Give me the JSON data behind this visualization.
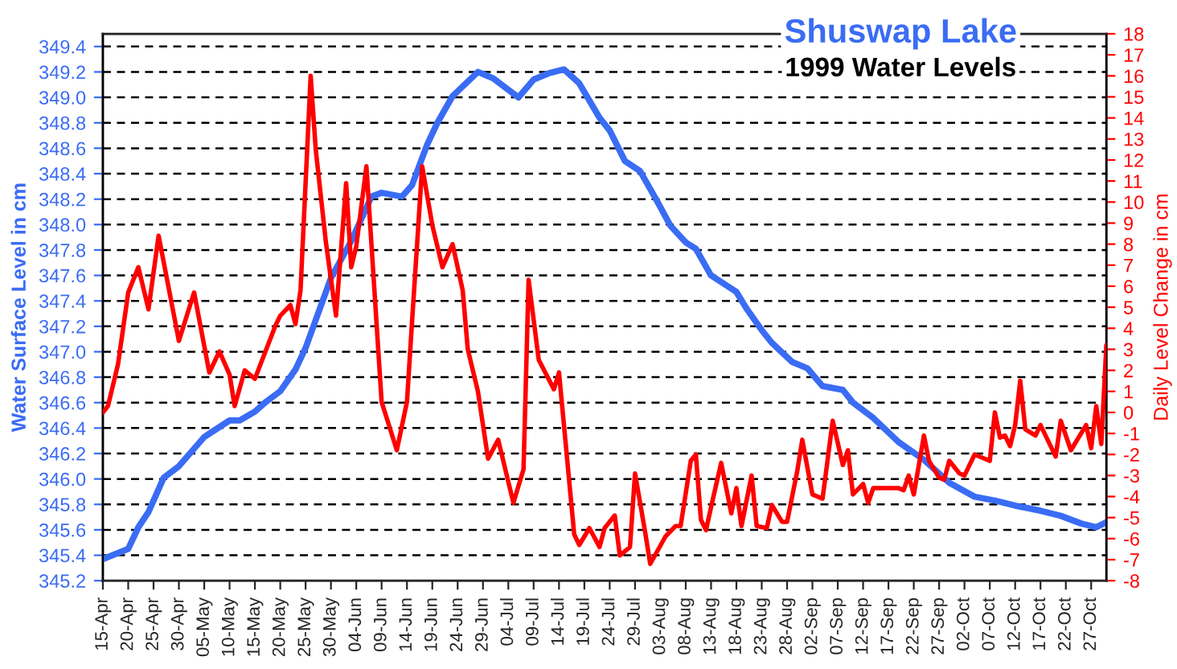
{
  "chart_data": {
    "type": "line",
    "title": "Shuswap Lake",
    "subtitle": "1999 Water Levels",
    "ylabel": "Water Surface Level in cm",
    "y2label": "Daily Level Change in cm",
    "series": [
      {
        "color": "#3a6cf4",
        "x": [
          "1999-04-15",
          "1999-04-20",
          "1999-04-22",
          "1999-04-24",
          "1999-04-27",
          "1999-04-30",
          "1999-05-05",
          "1999-05-10",
          "1999-05-12",
          "1999-05-15",
          "1999-05-17",
          "1999-05-20",
          "1999-05-23",
          "1999-05-25",
          "1999-05-30",
          "1999-06-03",
          "1999-06-07",
          "1999-06-09",
          "1999-06-13",
          "1999-06-15",
          "1999-06-18",
          "1999-06-20",
          "1999-06-23",
          "1999-06-28",
          "1999-07-01",
          "1999-07-06",
          "1999-07-09",
          "1999-07-12",
          "1999-07-15",
          "1999-07-18",
          "1999-07-22",
          "1999-07-24",
          "1999-07-27",
          "1999-07-30",
          "1999-08-02",
          "1999-08-05",
          "1999-08-08",
          "1999-08-10",
          "1999-08-13",
          "1999-08-18",
          "1999-08-20",
          "1999-08-23",
          "1999-08-25",
          "1999-08-29",
          "1999-09-01",
          "1999-09-04",
          "1999-09-08",
          "1999-09-10",
          "1999-09-14",
          "1999-09-19",
          "1999-09-24",
          "1999-09-29",
          "1999-10-04",
          "1999-10-08",
          "1999-10-12",
          "1999-10-17",
          "1999-10-21",
          "1999-10-25",
          "1999-10-28",
          "1999-10-30"
        ],
        "values": [
          345.37,
          345.45,
          345.62,
          345.74,
          346.01,
          346.1,
          346.33,
          346.46,
          346.46,
          346.53,
          346.6,
          346.69,
          346.86,
          347.03,
          347.58,
          347.87,
          348.22,
          348.25,
          348.22,
          348.31,
          348.63,
          348.8,
          349.01,
          349.2,
          349.15,
          349.0,
          349.14,
          349.19,
          349.22,
          349.11,
          348.84,
          348.74,
          348.5,
          348.42,
          348.21,
          347.99,
          347.86,
          347.81,
          347.6,
          347.47,
          347.34,
          347.17,
          347.07,
          346.92,
          346.87,
          346.73,
          346.7,
          346.6,
          346.48,
          346.29,
          346.15,
          345.97,
          345.86,
          345.83,
          345.79,
          345.75,
          345.71,
          345.65,
          345.62,
          345.66
        ]
      },
      {
        "color": "#ff0000",
        "axis": "y2",
        "x": [
          "1999-04-15",
          "1999-04-16",
          "1999-04-18",
          "1999-04-19",
          "1999-04-20",
          "1999-04-22",
          "1999-04-24",
          "1999-04-26",
          "1999-04-30",
          "1999-05-03",
          "1999-05-06",
          "1999-05-08",
          "1999-05-10",
          "1999-05-11",
          "1999-05-13",
          "1999-05-15",
          "1999-05-19",
          "1999-05-20",
          "1999-05-22",
          "1999-05-23",
          "1999-05-24",
          "1999-05-26",
          "1999-05-27",
          "1999-05-29",
          "1999-05-31",
          "1999-06-02",
          "1999-06-03",
          "1999-06-04",
          "1999-06-06",
          "1999-06-09",
          "1999-06-12",
          "1999-06-14",
          "1999-06-15",
          "1999-06-17",
          "1999-06-19",
          "1999-06-21",
          "1999-06-23",
          "1999-06-25",
          "1999-06-26",
          "1999-06-28",
          "1999-06-30",
          "1999-07-02",
          "1999-07-05",
          "1999-07-07",
          "1999-07-08",
          "1999-07-10",
          "1999-07-13",
          "1999-07-14",
          "1999-07-17",
          "1999-07-18",
          "1999-07-20",
          "1999-07-22",
          "1999-07-23",
          "1999-07-25",
          "1999-07-26",
          "1999-07-28",
          "1999-07-29",
          "1999-07-31",
          "1999-08-01",
          "1999-08-04",
          "1999-08-06",
          "1999-08-07",
          "1999-08-09",
          "1999-08-10",
          "1999-08-11",
          "1999-08-12",
          "1999-08-13",
          "1999-08-15",
          "1999-08-17",
          "1999-08-18",
          "1999-08-19",
          "1999-08-21",
          "1999-08-22",
          "1999-08-24",
          "1999-08-25",
          "1999-08-27",
          "1999-08-28",
          "1999-08-30",
          "1999-08-31",
          "1999-09-02",
          "1999-09-04",
          "1999-09-06",
          "1999-09-08",
          "1999-09-09",
          "1999-09-10",
          "1999-09-12",
          "1999-09-13",
          "1999-09-14",
          "1999-09-17",
          "1999-09-19",
          "1999-09-20",
          "1999-09-21",
          "1999-09-22",
          "1999-09-24",
          "1999-09-25",
          "1999-09-27",
          "1999-09-28",
          "1999-09-29",
          "1999-10-01",
          "1999-10-02",
          "1999-10-04",
          "1999-10-06",
          "1999-10-07",
          "1999-10-08",
          "1999-10-09",
          "1999-10-10",
          "1999-10-11",
          "1999-10-12",
          "1999-10-13",
          "1999-10-14",
          "1999-10-16",
          "1999-10-17",
          "1999-10-20",
          "1999-10-21",
          "1999-10-23",
          "1999-10-26",
          "1999-10-27",
          "1999-10-28",
          "1999-10-29",
          "1999-10-30"
        ],
        "values": [
          0.0,
          0.3,
          2.3,
          4.0,
          5.7,
          6.9,
          4.9,
          8.4,
          3.4,
          5.7,
          1.9,
          2.9,
          1.8,
          0.3,
          2.0,
          1.6,
          4.1,
          4.6,
          5.1,
          4.2,
          5.8,
          16.0,
          12.5,
          8.1,
          4.6,
          10.9,
          6.9,
          7.9,
          11.7,
          0.5,
          -1.8,
          0.5,
          4.3,
          11.7,
          8.9,
          6.9,
          8.0,
          5.8,
          3.0,
          1.0,
          -2.2,
          -1.3,
          -4.3,
          -2.7,
          6.3,
          2.5,
          1.1,
          1.9,
          -5.8,
          -6.3,
          -5.5,
          -6.4,
          -5.5,
          -4.9,
          -6.8,
          -6.4,
          -2.9,
          -5.7,
          -7.2,
          -5.9,
          -5.4,
          -5.4,
          -2.3,
          -2.0,
          -5.1,
          -5.6,
          -4.5,
          -2.4,
          -4.8,
          -3.6,
          -5.4,
          -3.0,
          -5.4,
          -5.5,
          -4.4,
          -5.2,
          -5.2,
          -2.8,
          -1.3,
          -3.9,
          -4.1,
          -0.4,
          -2.5,
          -1.8,
          -3.9,
          -3.4,
          -4.3,
          -3.6,
          -3.6,
          -3.6,
          -3.7,
          -3.0,
          -3.9,
          -1.1,
          -2.3,
          -3.1,
          -3.2,
          -2.3,
          -2.9,
          -3.0,
          -2.0,
          -2.2,
          -2.3,
          0.0,
          -1.2,
          -1.1,
          -1.6,
          -0.6,
          1.5,
          -0.8,
          -1.1,
          -0.6,
          -2.1,
          -0.4,
          -1.8,
          -0.6,
          -1.7,
          0.3,
          -1.5,
          3.2
        ]
      }
    ],
    "xlim": [
      "1999-04-15",
      "1999-10-30"
    ],
    "xticks": [
      {
        "value": "1999-04-15",
        "label": "15-Apr"
      },
      {
        "value": "1999-04-20",
        "label": "20-Apr"
      },
      {
        "value": "1999-04-25",
        "label": "25-Apr"
      },
      {
        "value": "1999-04-30",
        "label": "30-Apr"
      },
      {
        "value": "1999-05-05",
        "label": "05-May"
      },
      {
        "value": "1999-05-10",
        "label": "10-May"
      },
      {
        "value": "1999-05-15",
        "label": "15-May"
      },
      {
        "value": "1999-05-20",
        "label": "20-May"
      },
      {
        "value": "1999-05-25",
        "label": "25-May"
      },
      {
        "value": "1999-05-30",
        "label": "30-May"
      },
      {
        "value": "1999-06-04",
        "label": "04-Jun"
      },
      {
        "value": "1999-06-09",
        "label": "09-Jun"
      },
      {
        "value": "1999-06-14",
        "label": "14-Jun"
      },
      {
        "value": "1999-06-19",
        "label": "19-Jun"
      },
      {
        "value": "1999-06-24",
        "label": "24-Jun"
      },
      {
        "value": "1999-06-29",
        "label": "29-Jun"
      },
      {
        "value": "1999-07-04",
        "label": "04-Jul"
      },
      {
        "value": "1999-07-09",
        "label": "09-Jul"
      },
      {
        "value": "1999-07-14",
        "label": "14-Jul"
      },
      {
        "value": "1999-07-19",
        "label": "19-Jul"
      },
      {
        "value": "1999-07-24",
        "label": "24-Jul"
      },
      {
        "value": "1999-07-29",
        "label": "29-Jul"
      },
      {
        "value": "1999-08-03",
        "label": "03-Aug"
      },
      {
        "value": "1999-08-08",
        "label": "08-Aug"
      },
      {
        "value": "1999-08-13",
        "label": "13-Aug"
      },
      {
        "value": "1999-08-18",
        "label": "18-Aug"
      },
      {
        "value": "1999-08-23",
        "label": "23-Aug"
      },
      {
        "value": "1999-08-28",
        "label": "28-Aug"
      },
      {
        "value": "1999-09-02",
        "label": "02-Sep"
      },
      {
        "value": "1999-09-07",
        "label": "07-Sep"
      },
      {
        "value": "1999-09-12",
        "label": "12-Sep"
      },
      {
        "value": "1999-09-17",
        "label": "17-Sep"
      },
      {
        "value": "1999-09-22",
        "label": "22-Sep"
      },
      {
        "value": "1999-09-27",
        "label": "27-Sep"
      },
      {
        "value": "1999-10-02",
        "label": "02-Oct"
      },
      {
        "value": "1999-10-07",
        "label": "07-Oct"
      },
      {
        "value": "1999-10-12",
        "label": "12-Oct"
      },
      {
        "value": "1999-10-17",
        "label": "17-Oct"
      },
      {
        "value": "1999-10-22",
        "label": "22-Oct"
      },
      {
        "value": "1999-10-27",
        "label": "27-Oct"
      }
    ],
    "ylim": [
      345.2,
      349.5
    ],
    "yticks": [
      345.2,
      345.4,
      345.6,
      345.8,
      {
        "value": 346,
        "label": "346.0"
      },
      346.2,
      346.4,
      346.6,
      346.8,
      {
        "value": 347,
        "label": "347.0"
      },
      347.2,
      347.4,
      347.6,
      347.8,
      {
        "value": 348,
        "label": "348.0"
      },
      348.2,
      348.4,
      348.6,
      348.8,
      {
        "value": 349,
        "label": "349.0"
      },
      349.2,
      349.4
    ],
    "y2lim": [
      -8,
      18
    ],
    "y2ticks": [
      -8,
      -7,
      -6,
      -5,
      -4,
      -3,
      -2,
      -1,
      0,
      1,
      2,
      3,
      4,
      5,
      6,
      7,
      8,
      9,
      10,
      11,
      12,
      13,
      14,
      15,
      16,
      17,
      18
    ],
    "grid": "y"
  }
}
